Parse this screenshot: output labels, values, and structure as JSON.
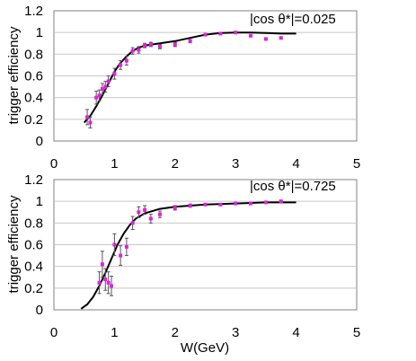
{
  "colors": {
    "points": "#e020e0",
    "fit": "#000000",
    "grid": "#c8c8c8",
    "frame": "#808080"
  },
  "chart_data": [
    {
      "type": "scatter",
      "annotation": "|cos θ*|=0.025",
      "ylabel": "trigger efficiency",
      "xlabel": "",
      "xlim": [
        0,
        5
      ],
      "ylim": [
        0,
        1.2
      ],
      "xticks": [
        "0",
        "1",
        "2",
        "3",
        "4",
        "5"
      ],
      "yticks": [
        "0",
        "0.2",
        "0.4",
        "0.6",
        "0.8",
        "1",
        "1.2"
      ],
      "grid": "horizontal",
      "points": [
        {
          "x": 0.55,
          "y": 0.22,
          "err": 0.07
        },
        {
          "x": 0.6,
          "y": 0.17,
          "err": 0.05
        },
        {
          "x": 0.7,
          "y": 0.4,
          "err": 0.06
        },
        {
          "x": 0.75,
          "y": 0.42,
          "err": 0.05
        },
        {
          "x": 0.8,
          "y": 0.48,
          "err": 0.05
        },
        {
          "x": 0.85,
          "y": 0.5,
          "err": 0.05
        },
        {
          "x": 0.9,
          "y": 0.55,
          "err": 0.05
        },
        {
          "x": 1.0,
          "y": 0.62,
          "err": 0.05
        },
        {
          "x": 1.1,
          "y": 0.7,
          "err": 0.04
        },
        {
          "x": 1.2,
          "y": 0.74,
          "err": 0.04
        },
        {
          "x": 1.3,
          "y": 0.83,
          "err": 0.03
        },
        {
          "x": 1.4,
          "y": 0.84,
          "err": 0.03
        },
        {
          "x": 1.5,
          "y": 0.88,
          "err": 0.02
        },
        {
          "x": 1.6,
          "y": 0.89,
          "err": 0.02
        },
        {
          "x": 1.75,
          "y": 0.87,
          "err": 0.02
        },
        {
          "x": 2.0,
          "y": 0.89,
          "err": 0.02
        },
        {
          "x": 2.25,
          "y": 0.92,
          "err": 0.015
        },
        {
          "x": 2.5,
          "y": 0.98,
          "err": 0.01
        },
        {
          "x": 2.75,
          "y": 0.99,
          "err": 0.01
        },
        {
          "x": 3.0,
          "y": 1.0,
          "err": 0.01
        },
        {
          "x": 3.25,
          "y": 0.97,
          "err": 0.01
        },
        {
          "x": 3.5,
          "y": 0.94,
          "err": 0.01
        },
        {
          "x": 3.75,
          "y": 0.95,
          "err": 0.01
        }
      ],
      "fit_curve": [
        {
          "x": 0.5,
          "y": 0.17
        },
        {
          "x": 0.6,
          "y": 0.23
        },
        {
          "x": 0.7,
          "y": 0.32
        },
        {
          "x": 0.8,
          "y": 0.42
        },
        {
          "x": 0.9,
          "y": 0.53
        },
        {
          "x": 1.0,
          "y": 0.64
        },
        {
          "x": 1.1,
          "y": 0.72
        },
        {
          "x": 1.2,
          "y": 0.78
        },
        {
          "x": 1.3,
          "y": 0.83
        },
        {
          "x": 1.4,
          "y": 0.86
        },
        {
          "x": 1.5,
          "y": 0.88
        },
        {
          "x": 1.75,
          "y": 0.9
        },
        {
          "x": 2.0,
          "y": 0.92
        },
        {
          "x": 2.25,
          "y": 0.95
        },
        {
          "x": 2.5,
          "y": 0.98
        },
        {
          "x": 2.75,
          "y": 0.995
        },
        {
          "x": 3.0,
          "y": 1.0
        },
        {
          "x": 3.25,
          "y": 1.0
        },
        {
          "x": 3.5,
          "y": 0.995
        },
        {
          "x": 3.75,
          "y": 0.99
        },
        {
          "x": 4.0,
          "y": 0.99
        }
      ]
    },
    {
      "type": "scatter",
      "annotation": "|cos θ*|=0.725",
      "ylabel": "trigger efficiency",
      "xlabel": "W(GeV)",
      "xlim": [
        0,
        5
      ],
      "ylim": [
        0,
        1.2
      ],
      "xticks": [
        "0",
        "1",
        "2",
        "3",
        "4",
        "5"
      ],
      "yticks": [
        "0",
        "0.2",
        "0.4",
        "0.6",
        "0.8",
        "1",
        "1.2"
      ],
      "grid": "horizontal",
      "points": [
        {
          "x": 0.75,
          "y": 0.25,
          "err": 0.1
        },
        {
          "x": 0.8,
          "y": 0.42,
          "err": 0.12
        },
        {
          "x": 0.85,
          "y": 0.28,
          "err": 0.1
        },
        {
          "x": 0.9,
          "y": 0.25,
          "err": 0.1
        },
        {
          "x": 0.95,
          "y": 0.22,
          "err": 0.09
        },
        {
          "x": 1.0,
          "y": 0.6,
          "err": 0.1
        },
        {
          "x": 1.1,
          "y": 0.5,
          "err": 0.09
        },
        {
          "x": 1.2,
          "y": 0.58,
          "err": 0.08
        },
        {
          "x": 1.3,
          "y": 0.8,
          "err": 0.06
        },
        {
          "x": 1.4,
          "y": 0.9,
          "err": 0.05
        },
        {
          "x": 1.5,
          "y": 0.92,
          "err": 0.04
        },
        {
          "x": 1.6,
          "y": 0.84,
          "err": 0.04
        },
        {
          "x": 1.75,
          "y": 0.88,
          "err": 0.03
        },
        {
          "x": 2.0,
          "y": 0.94,
          "err": 0.02
        },
        {
          "x": 2.25,
          "y": 0.96,
          "err": 0.015
        },
        {
          "x": 2.5,
          "y": 0.97,
          "err": 0.01
        },
        {
          "x": 2.75,
          "y": 0.97,
          "err": 0.01
        },
        {
          "x": 3.0,
          "y": 0.98,
          "err": 0.01
        },
        {
          "x": 3.25,
          "y": 0.98,
          "err": 0.01
        },
        {
          "x": 3.5,
          "y": 0.99,
          "err": 0.01
        },
        {
          "x": 3.75,
          "y": 1.0,
          "err": 0.01
        }
      ],
      "fit_curve": [
        {
          "x": 0.45,
          "y": 0.01
        },
        {
          "x": 0.55,
          "y": 0.05
        },
        {
          "x": 0.65,
          "y": 0.12
        },
        {
          "x": 0.75,
          "y": 0.22
        },
        {
          "x": 0.85,
          "y": 0.34
        },
        {
          "x": 0.95,
          "y": 0.47
        },
        {
          "x": 1.05,
          "y": 0.6
        },
        {
          "x": 1.15,
          "y": 0.7
        },
        {
          "x": 1.25,
          "y": 0.78
        },
        {
          "x": 1.35,
          "y": 0.84
        },
        {
          "x": 1.5,
          "y": 0.89
        },
        {
          "x": 1.75,
          "y": 0.93
        },
        {
          "x": 2.0,
          "y": 0.95
        },
        {
          "x": 2.5,
          "y": 0.97
        },
        {
          "x": 3.0,
          "y": 0.98
        },
        {
          "x": 3.5,
          "y": 0.99
        },
        {
          "x": 4.0,
          "y": 0.99
        }
      ]
    }
  ]
}
